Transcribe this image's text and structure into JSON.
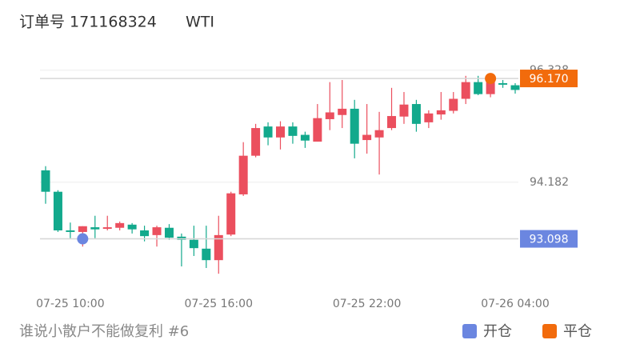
{
  "chart_data": {
    "type": "candlestick",
    "title": "订单号 171168324",
    "subtitle": "WTI",
    "footer": "谁说小散户不能做复利 #6",
    "categories": [
      null,
      null,
      "07-25 10:00",
      null,
      null,
      null,
      null,
      null,
      null,
      null,
      null,
      null,
      null,
      null,
      "07-25 16:00",
      null,
      null,
      null,
      null,
      null,
      null,
      null,
      null,
      null,
      null,
      null,
      "07-25 22:00",
      null,
      null,
      null,
      null,
      null,
      null,
      null,
      null,
      null,
      null,
      null,
      "07-26 04:00"
    ],
    "open": [
      94.41,
      94.0,
      93.26,
      93.23,
      93.32,
      93.29,
      93.31,
      93.37,
      93.26,
      93.17,
      93.31,
      93.14,
      93.08,
      92.91,
      92.69,
      93.18,
      93.95,
      94.69,
      95.25,
      95.04,
      95.25,
      95.09,
      94.96,
      95.39,
      95.47,
      95.59,
      94.99,
      95.04,
      95.22,
      95.44,
      95.68,
      95.33,
      95.48,
      95.55,
      95.78,
      96.1,
      95.87,
      96.08,
      96.04
    ],
    "high": [
      94.49,
      94.03,
      93.41,
      93.34,
      93.54,
      93.54,
      93.43,
      93.4,
      93.35,
      93.35,
      93.38,
      93.2,
      93.35,
      93.35,
      93.54,
      94.0,
      94.95,
      95.3,
      95.33,
      95.35,
      95.33,
      95.15,
      95.68,
      96.1,
      96.14,
      95.76,
      95.68,
      95.53,
      95.99,
      95.91,
      95.76,
      95.56,
      95.91,
      95.91,
      96.22,
      96.22,
      96.22,
      96.14,
      96.08
    ],
    "low": [
      93.77,
      93.23,
      93.11,
      92.95,
      93.11,
      93.26,
      93.26,
      93.2,
      93.05,
      92.95,
      93.08,
      92.57,
      92.77,
      92.54,
      92.43,
      93.15,
      93.92,
      94.66,
      94.89,
      94.81,
      94.92,
      94.84,
      94.96,
      95.18,
      95.22,
      94.64,
      94.73,
      94.33,
      95.18,
      95.3,
      95.15,
      95.22,
      95.38,
      95.5,
      95.68,
      95.85,
      95.81,
      95.99,
      95.88
    ],
    "close": [
      94.0,
      93.26,
      93.23,
      93.34,
      93.28,
      93.32,
      93.4,
      93.28,
      93.15,
      93.32,
      93.12,
      93.08,
      92.92,
      92.69,
      93.17,
      93.97,
      94.69,
      95.22,
      95.04,
      95.25,
      95.07,
      94.98,
      95.41,
      95.52,
      95.59,
      94.92,
      95.09,
      95.18,
      95.45,
      95.67,
      95.3,
      95.5,
      95.56,
      95.78,
      96.1,
      95.87,
      96.11,
      96.05,
      95.95
    ],
    "up_color": "#eb4f5e",
    "down_color": "#12a98c",
    "series": [
      {
        "name": "开仓",
        "color": "#6b86e0",
        "values": [
          null,
          null,
          null,
          93.098,
          null,
          null,
          null,
          null,
          null,
          null,
          null,
          null,
          null,
          null,
          null,
          null,
          null,
          null,
          null,
          null,
          null,
          null,
          null,
          null,
          null,
          null,
          null,
          null,
          null,
          null,
          null,
          null,
          null,
          null,
          null,
          null,
          null,
          null,
          null
        ]
      },
      {
        "name": "平仓",
        "color": "#f26b0c",
        "values": [
          null,
          null,
          null,
          null,
          null,
          null,
          null,
          null,
          null,
          null,
          null,
          null,
          null,
          null,
          null,
          null,
          null,
          null,
          null,
          null,
          null,
          null,
          null,
          null,
          null,
          null,
          null,
          null,
          null,
          null,
          null,
          null,
          null,
          null,
          null,
          null,
          96.17,
          null,
          null
        ],
        "value_labels": [
          null,
          null,
          null,
          null,
          null,
          null,
          null,
          null,
          null,
          null,
          null,
          null,
          null,
          null,
          null,
          null,
          null,
          null,
          null,
          null,
          null,
          null,
          null,
          null,
          null,
          null,
          null,
          null,
          null,
          null,
          null,
          null,
          null,
          null,
          null,
          null,
          "96.170",
          null,
          null
        ]
      }
    ],
    "ylim": [
      92.08,
      96.6
    ],
    "yticks": [
      94.182,
      96.328
    ],
    "grid": true
  }
}
